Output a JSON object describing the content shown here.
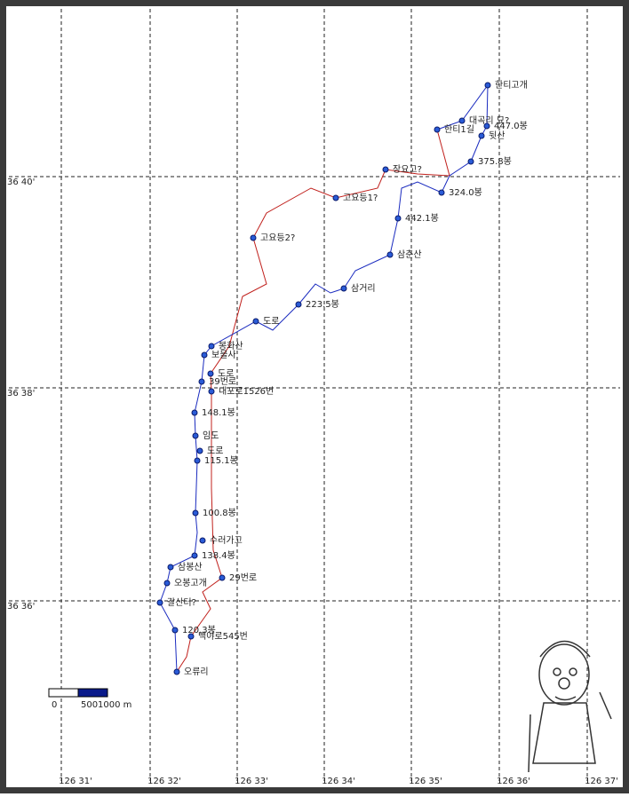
{
  "grid_labels": {
    "longitude": [
      "126 31'",
      "126 32'",
      "126 33'",
      "126 34'",
      "126 35'",
      "126 36'",
      "126 37'"
    ],
    "latitude": [
      "36 40'",
      "36 38'",
      "36 36'"
    ]
  },
  "scale_bar": [
    "0",
    "500",
    "1000 m"
  ],
  "waypoints": [
    "한티고개",
    "대곡리 묘?",
    "447.0봉",
    "한티1길",
    "뒷산",
    "375.8봉",
    "장요고?",
    "324.0봉",
    "고요등1?",
    "442.1봉",
    "고요등2?",
    "삼춘산",
    "삼거리",
    "223.5봉",
    "도로",
    "봉화산",
    "보물사",
    "도로",
    "39번로",
    "내포로1526번",
    "148.1봉",
    "임도",
    "도로",
    "115.1봉",
    "100.8봉",
    "수러가고",
    "138.4봉",
    "삼봉산",
    "29번로",
    "오봉고개",
    "갈산터?",
    "120.3봉",
    "백야로545번",
    "오류리"
  ]
}
